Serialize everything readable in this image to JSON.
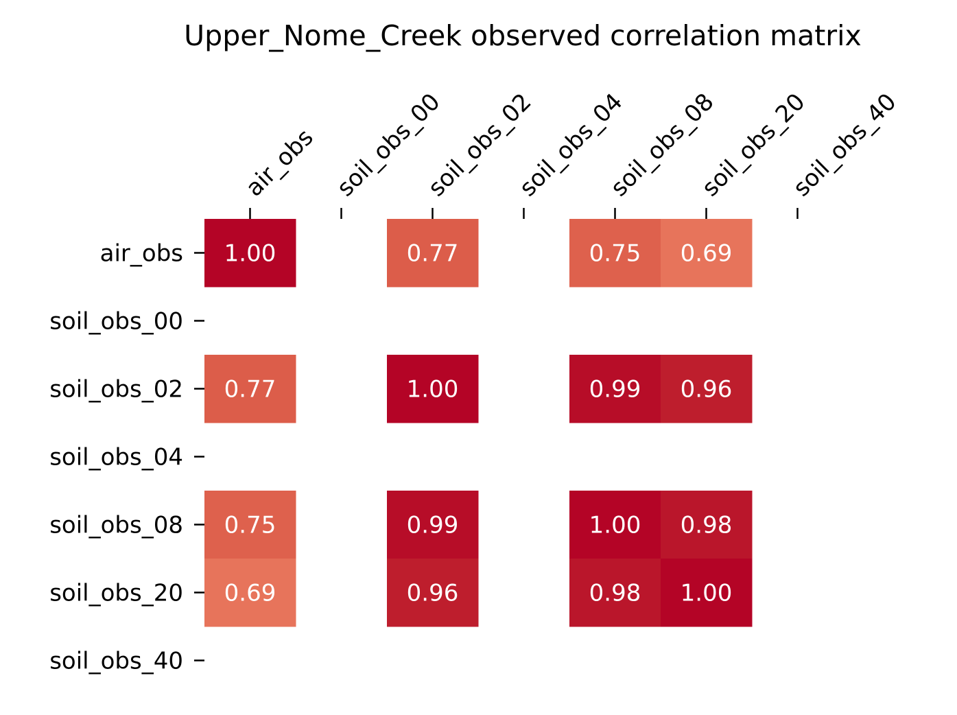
{
  "chart_data": {
    "type": "heatmap",
    "title": "Upper_Nome_Creek observed correlation matrix",
    "xlabel": "",
    "ylabel": "",
    "x_categories": [
      "air_obs",
      "soil_obs_00",
      "soil_obs_02",
      "soil_obs_04",
      "soil_obs_08",
      "soil_obs_20",
      "soil_obs_40"
    ],
    "y_categories": [
      "air_obs",
      "soil_obs_00",
      "soil_obs_02",
      "soil_obs_04",
      "soil_obs_08",
      "soil_obs_20",
      "soil_obs_40"
    ],
    "x_axis_position": "top",
    "x_tick_rotation_deg": 45,
    "values": [
      [
        1.0,
        null,
        0.77,
        null,
        0.75,
        0.69,
        null
      ],
      [
        null,
        null,
        null,
        null,
        null,
        null,
        null
      ],
      [
        0.77,
        null,
        1.0,
        null,
        0.99,
        0.96,
        null
      ],
      [
        null,
        null,
        null,
        null,
        null,
        null,
        null
      ],
      [
        0.75,
        null,
        0.99,
        null,
        1.0,
        0.98,
        null
      ],
      [
        0.69,
        null,
        0.96,
        null,
        0.98,
        1.0,
        null
      ],
      [
        null,
        null,
        null,
        null,
        null,
        null,
        null
      ]
    ],
    "annotation_format": "0.00",
    "colormap": "coolwarm",
    "color_scale_range": [
      -1,
      1
    ],
    "missing_cells": "blank",
    "colorbar": false,
    "grid": false,
    "colors": {
      "1.00": "#b40426",
      "0.99": "#b70d28",
      "0.98": "#ba162b",
      "0.96": "#be1e2d",
      "0.77": "#dc5d4a",
      "0.75": "#de614d",
      "0.69": "#e7745b"
    }
  }
}
